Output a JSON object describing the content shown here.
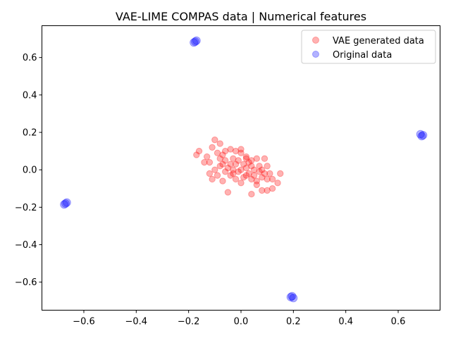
{
  "chart_data": {
    "type": "scatter",
    "title": "VAE-LIME COMPAS data | Numerical features",
    "xlabel": "",
    "ylabel": "",
    "xlim": [
      -0.76,
      0.76
    ],
    "ylim": [
      -0.75,
      0.77
    ],
    "xticks": [
      -0.6,
      -0.4,
      -0.2,
      0.0,
      0.2,
      0.4,
      0.6
    ],
    "yticks": [
      -0.6,
      -0.4,
      -0.2,
      0.0,
      0.2,
      0.4,
      0.6
    ],
    "xtick_labels": [
      "−0.6",
      "−0.4",
      "−0.2",
      "0.0",
      "0.2",
      "0.4",
      "0.6"
    ],
    "ytick_labels": [
      "−0.6",
      "−0.4",
      "−0.2",
      "0.0",
      "0.2",
      "0.4",
      "0.6"
    ],
    "grid": false,
    "legend_position": "top-right",
    "series": [
      {
        "name": "VAE generated data",
        "color": "#ff0000",
        "alpha": 0.3,
        "points": [
          [
            -0.17,
            0.08
          ],
          [
            -0.16,
            0.1
          ],
          [
            -0.1,
            0.16
          ],
          [
            -0.11,
            0.12
          ],
          [
            -0.08,
            0.14
          ],
          [
            -0.13,
            0.07
          ],
          [
            -0.12,
            0.04
          ],
          [
            -0.14,
            0.04
          ],
          [
            -0.11,
            -0.05
          ],
          [
            -0.12,
            -0.02
          ],
          [
            -0.09,
            0.09
          ],
          [
            -0.07,
            0.08
          ],
          [
            -0.06,
            0.1
          ],
          [
            -0.04,
            0.11
          ],
          [
            -0.02,
            0.1
          ],
          [
            0.0,
            0.11
          ],
          [
            0.0,
            0.09
          ],
          [
            0.02,
            0.07
          ],
          [
            0.04,
            0.05
          ],
          [
            0.06,
            0.06
          ],
          [
            0.09,
            0.06
          ],
          [
            0.1,
            0.02
          ],
          [
            0.11,
            -0.02
          ],
          [
            0.12,
            -0.05
          ],
          [
            0.14,
            -0.07
          ],
          [
            0.15,
            -0.02
          ],
          [
            0.12,
            -0.1
          ],
          [
            0.1,
            -0.11
          ],
          [
            0.08,
            -0.11
          ],
          [
            0.04,
            -0.13
          ],
          [
            -0.05,
            -0.12
          ],
          [
            -0.07,
            -0.06
          ],
          [
            -0.09,
            -0.03
          ],
          [
            -0.08,
            0.02
          ],
          [
            -0.06,
            0.05
          ],
          [
            -0.05,
            0.01
          ],
          [
            -0.04,
            -0.03
          ],
          [
            -0.03,
            0.06
          ],
          [
            -0.02,
            0.03
          ],
          [
            -0.01,
            -0.01
          ],
          [
            -0.01,
            0.05
          ],
          [
            0.0,
            0.0
          ],
          [
            0.01,
            -0.04
          ],
          [
            0.01,
            0.03
          ],
          [
            0.02,
            0.01
          ],
          [
            0.03,
            -0.02
          ],
          [
            0.03,
            0.04
          ],
          [
            0.04,
            -0.05
          ],
          [
            0.05,
            0.0
          ],
          [
            0.05,
            -0.03
          ],
          [
            0.06,
            -0.06
          ],
          [
            0.07,
            -0.01
          ],
          [
            0.07,
            0.02
          ],
          [
            0.08,
            -0.04
          ],
          [
            0.09,
            -0.02
          ],
          [
            -0.02,
            -0.05
          ],
          [
            -0.03,
            -0.02
          ],
          [
            -0.04,
            0.03
          ],
          [
            -0.06,
            -0.01
          ],
          [
            -0.07,
            0.03
          ],
          [
            0.02,
            0.06
          ],
          [
            0.0,
            -0.07
          ],
          [
            0.06,
            -0.08
          ],
          [
            -0.1,
            0.0
          ],
          [
            0.1,
            -0.05
          ],
          [
            -0.08,
            0.06
          ],
          [
            0.02,
            -0.03
          ],
          [
            -0.03,
            0.0
          ],
          [
            0.04,
            0.02
          ],
          [
            0.08,
            0.0
          ]
        ]
      },
      {
        "name": "Original data",
        "color": "#0000ff",
        "alpha": 0.3,
        "points": [
          [
            -0.18,
            0.68
          ],
          [
            -0.17,
            0.69
          ],
          [
            -0.175,
            0.685
          ],
          [
            0.69,
            0.18
          ],
          [
            0.695,
            0.185
          ],
          [
            0.685,
            0.19
          ],
          [
            -0.67,
            -0.18
          ],
          [
            -0.675,
            -0.185
          ],
          [
            -0.665,
            -0.175
          ],
          [
            0.19,
            -0.68
          ],
          [
            0.195,
            -0.675
          ],
          [
            0.2,
            -0.685
          ]
        ]
      }
    ]
  }
}
